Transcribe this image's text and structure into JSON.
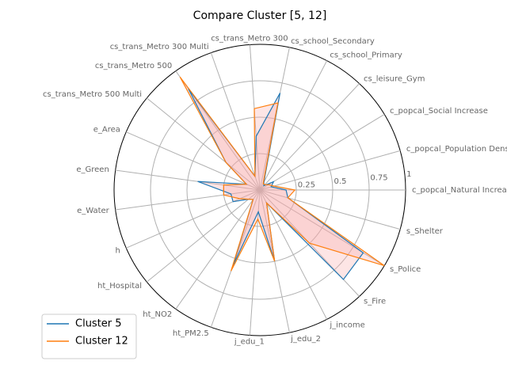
{
  "chart_data": {
    "type": "radar",
    "title": "Compare Cluster [5, 12]",
    "categories": [
      "c_popcal_Natural Increase",
      "c_popcal_Population Density",
      "c_popcal_Social Increase",
      "cs_leisure_Gym",
      "cs_school_Primary",
      "cs_school_Secondary",
      "cs_trans_Metro 300",
      "cs_trans_Metro 300 Multi",
      "cs_trans_Metro 500",
      "cs_trans_Metro 500 Multi",
      "e_Area",
      "e_Green",
      "e_Water",
      "h",
      "ht_Hospital",
      "ht_NO2",
      "ht_PM2.5",
      "j_edu_1",
      "j_edu_2",
      "j_income",
      "s_Fire",
      "s_Police",
      "s_Shelter"
    ],
    "series": [
      {
        "name": "Cluster 5",
        "color": "#1f77b4",
        "values": [
          0.18,
          0.08,
          0.11,
          0.04,
          0.06,
          0.68,
          0.37,
          0.1,
          0.85,
          0.3,
          0.1,
          0.43,
          0.2,
          0.2,
          0.1,
          0.08,
          0.55,
          0.15,
          0.5,
          0.1,
          0.84,
          0.83,
          0.2
        ]
      },
      {
        "name": "Cluster 12",
        "color": "#ff7f0e",
        "values": [
          0.24,
          0.1,
          0.07,
          0.05,
          0.05,
          0.61,
          0.56,
          0.1,
          0.95,
          0.3,
          0.1,
          0.25,
          0.25,
          0.15,
          0.1,
          0.08,
          0.59,
          0.2,
          0.5,
          0.1,
          0.5,
          1.0,
          0.2
        ]
      }
    ],
    "fill_color": "#f7a8a8",
    "rlim": [
      0,
      1
    ],
    "rticks": [
      0.25,
      0.5,
      0.75,
      1
    ],
    "grid": true,
    "legend": "lower left"
  }
}
